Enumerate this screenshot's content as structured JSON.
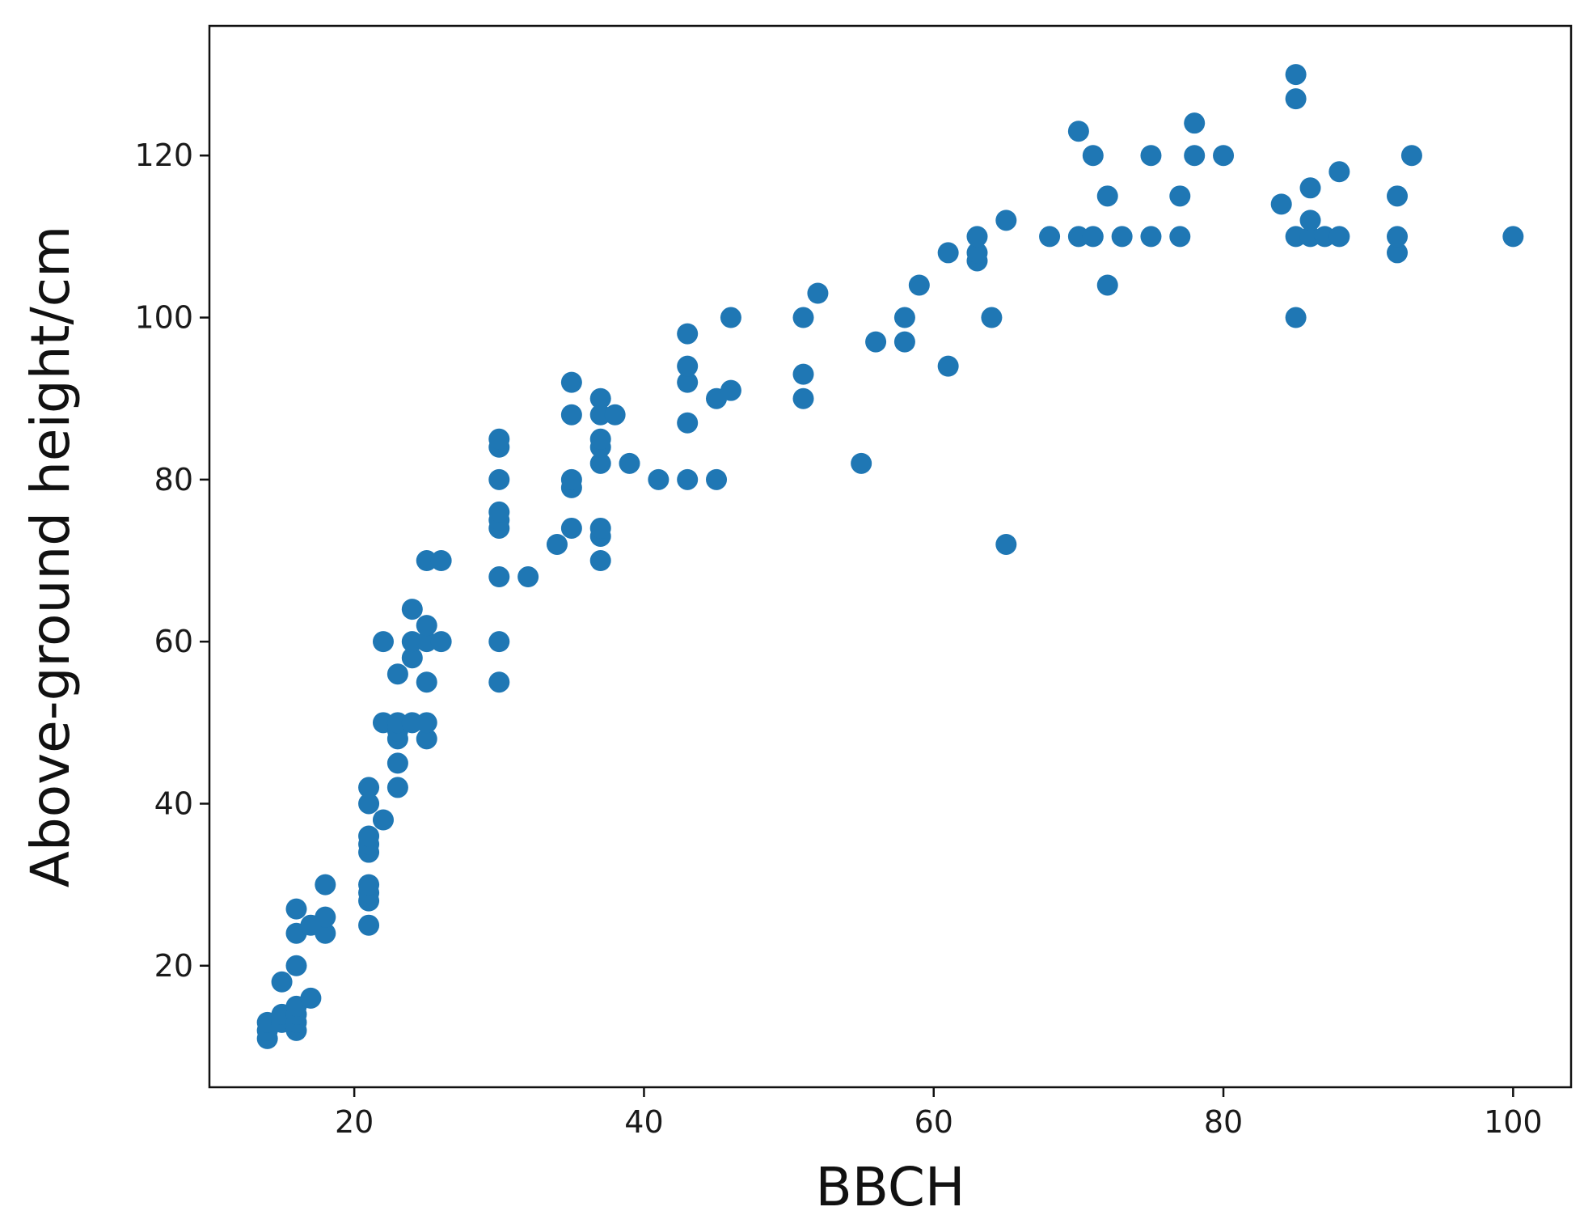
{
  "chart_data": {
    "type": "scatter",
    "xlabel": "BBCH",
    "ylabel": "Above-ground height/cm",
    "xlim": [
      10,
      104
    ],
    "ylim": [
      5,
      136
    ],
    "xticks": [
      20,
      40,
      60,
      80,
      100
    ],
    "yticks": [
      20,
      40,
      60,
      80,
      100,
      120
    ],
    "xtick_labels": [
      "20",
      "40",
      "60",
      "80",
      "100"
    ],
    "ytick_labels": [
      "20",
      "40",
      "60",
      "80",
      "100",
      "120"
    ],
    "grid": false,
    "marker_color": "#1f77b4",
    "points": [
      [
        14,
        11
      ],
      [
        14,
        12
      ],
      [
        14,
        13
      ],
      [
        15,
        13
      ],
      [
        15,
        14
      ],
      [
        15,
        18
      ],
      [
        16,
        12
      ],
      [
        16,
        13
      ],
      [
        16,
        14
      ],
      [
        16,
        15
      ],
      [
        16,
        20
      ],
      [
        16,
        24
      ],
      [
        16,
        27
      ],
      [
        17,
        16
      ],
      [
        17,
        25
      ],
      [
        18,
        24
      ],
      [
        18,
        26
      ],
      [
        18,
        30
      ],
      [
        21,
        25
      ],
      [
        21,
        28
      ],
      [
        21,
        29
      ],
      [
        21,
        30
      ],
      [
        21,
        34
      ],
      [
        21,
        35
      ],
      [
        21,
        36
      ],
      [
        21,
        40
      ],
      [
        21,
        42
      ],
      [
        22,
        38
      ],
      [
        22,
        50
      ],
      [
        22,
        60
      ],
      [
        23,
        42
      ],
      [
        23,
        45
      ],
      [
        23,
        48
      ],
      [
        23,
        49
      ],
      [
        23,
        50
      ],
      [
        23,
        56
      ],
      [
        24,
        50
      ],
      [
        24,
        58
      ],
      [
        24,
        60
      ],
      [
        24,
        64
      ],
      [
        25,
        48
      ],
      [
        25,
        50
      ],
      [
        25,
        55
      ],
      [
        25,
        60
      ],
      [
        25,
        62
      ],
      [
        25,
        70
      ],
      [
        26,
        60
      ],
      [
        26,
        70
      ],
      [
        30,
        55
      ],
      [
        30,
        60
      ],
      [
        30,
        68
      ],
      [
        30,
        74
      ],
      [
        30,
        75
      ],
      [
        30,
        76
      ],
      [
        30,
        80
      ],
      [
        30,
        84
      ],
      [
        30,
        85
      ],
      [
        32,
        68
      ],
      [
        34,
        72
      ],
      [
        35,
        74
      ],
      [
        35,
        79
      ],
      [
        35,
        80
      ],
      [
        35,
        88
      ],
      [
        35,
        92
      ],
      [
        37,
        70
      ],
      [
        37,
        73
      ],
      [
        37,
        74
      ],
      [
        37,
        82
      ],
      [
        37,
        84
      ],
      [
        37,
        85
      ],
      [
        37,
        88
      ],
      [
        37,
        90
      ],
      [
        38,
        88
      ],
      [
        39,
        82
      ],
      [
        41,
        80
      ],
      [
        43,
        80
      ],
      [
        43,
        87
      ],
      [
        43,
        92
      ],
      [
        43,
        94
      ],
      [
        43,
        98
      ],
      [
        45,
        80
      ],
      [
        45,
        90
      ],
      [
        46,
        91
      ],
      [
        46,
        100
      ],
      [
        51,
        90
      ],
      [
        51,
        93
      ],
      [
        51,
        100
      ],
      [
        52,
        103
      ],
      [
        55,
        82
      ],
      [
        56,
        97
      ],
      [
        58,
        97
      ],
      [
        58,
        100
      ],
      [
        59,
        104
      ],
      [
        61,
        94
      ],
      [
        61,
        108
      ],
      [
        63,
        107
      ],
      [
        63,
        108
      ],
      [
        63,
        110
      ],
      [
        64,
        100
      ],
      [
        65,
        72
      ],
      [
        65,
        112
      ],
      [
        68,
        110
      ],
      [
        70,
        110
      ],
      [
        70,
        123
      ],
      [
        71,
        110
      ],
      [
        71,
        120
      ],
      [
        72,
        104
      ],
      [
        72,
        115
      ],
      [
        73,
        110
      ],
      [
        75,
        110
      ],
      [
        75,
        120
      ],
      [
        77,
        110
      ],
      [
        77,
        115
      ],
      [
        78,
        120
      ],
      [
        78,
        124
      ],
      [
        80,
        120
      ],
      [
        84,
        114
      ],
      [
        85,
        100
      ],
      [
        85,
        110
      ],
      [
        85,
        127
      ],
      [
        85,
        130
      ],
      [
        86,
        110
      ],
      [
        86,
        112
      ],
      [
        86,
        116
      ],
      [
        87,
        110
      ],
      [
        88,
        110
      ],
      [
        88,
        118
      ],
      [
        92,
        108
      ],
      [
        92,
        110
      ],
      [
        92,
        115
      ],
      [
        93,
        120
      ],
      [
        100,
        110
      ]
    ]
  }
}
